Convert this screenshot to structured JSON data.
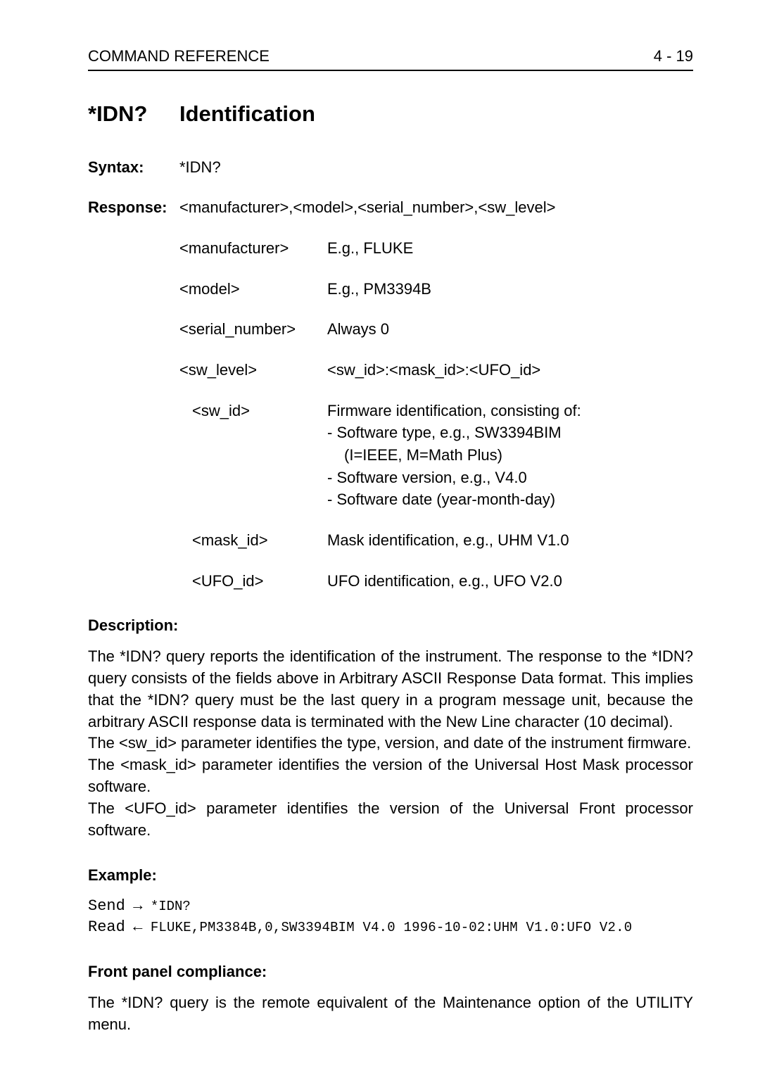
{
  "header": {
    "left": "COMMAND REFERENCE",
    "right": "4 - 19"
  },
  "command": {
    "name": "*IDN?",
    "title": "Identification"
  },
  "syntax": {
    "label": "Syntax:",
    "value": "*IDN?"
  },
  "response": {
    "label": "Response:",
    "format": "<manufacturer>,<model>,<serial_number>,<sw_level>",
    "params": [
      {
        "key": "<manufacturer>",
        "desc": "E.g., FLUKE",
        "indent": false
      },
      {
        "key": "<model>",
        "desc": "E.g., PM3394B",
        "indent": false
      },
      {
        "key": "<serial_number>",
        "desc": "Always 0",
        "indent": false
      },
      {
        "key": "<sw_level>",
        "desc": "<sw_id>:<mask_id>:<UFO_id>",
        "indent": false
      },
      {
        "key": "<sw_id>",
        "indent": true,
        "multi": [
          "Firmware identification, consisting of:",
          "- Software type, e.g., SW3394BIM",
          "  (I=IEEE, M=Math Plus)",
          "- Software version, e.g., V4.0",
          "- Software date (year-month-day)"
        ]
      },
      {
        "key": "<mask_id>",
        "desc": "Mask identification, e.g., UHM V1.0",
        "indent": true
      },
      {
        "key": "<UFO_id>",
        "desc": "UFO identification, e.g., UFO V2.0",
        "indent": true
      }
    ]
  },
  "description": {
    "heading": "Description:",
    "p1": "The *IDN? query reports the identification of the instrument. The response to the *IDN? query consists of the fields above in Arbitrary ASCII Response Data format. This implies that the *IDN? query must be the last query in a program message unit, because the arbitrary ASCII response data is terminated with the New Line character (10 decimal).",
    "p2": "The <sw_id> parameter identifies the type, version, and date of the instrument firmware.",
    "p3": "The <mask_id> parameter identifies the version of the Universal Host Mask processor software.",
    "p4": "The <UFO_id> parameter identifies the version of the Universal Front processor software."
  },
  "example": {
    "heading": "Example:",
    "send_label": "Send",
    "send_arrow": "→",
    "send_cmd": "*IDN?",
    "read_label": "Read",
    "read_arrow": "←",
    "read_resp": "FLUKE,PM3384B,0,SW3394BIM V4.0 1996-10-02:UHM V1.0:UFO V2.0"
  },
  "front_panel": {
    "heading": "Front panel compliance:",
    "text": "The *IDN? query is the remote equivalent of the Maintenance option of the UTILITY menu."
  }
}
